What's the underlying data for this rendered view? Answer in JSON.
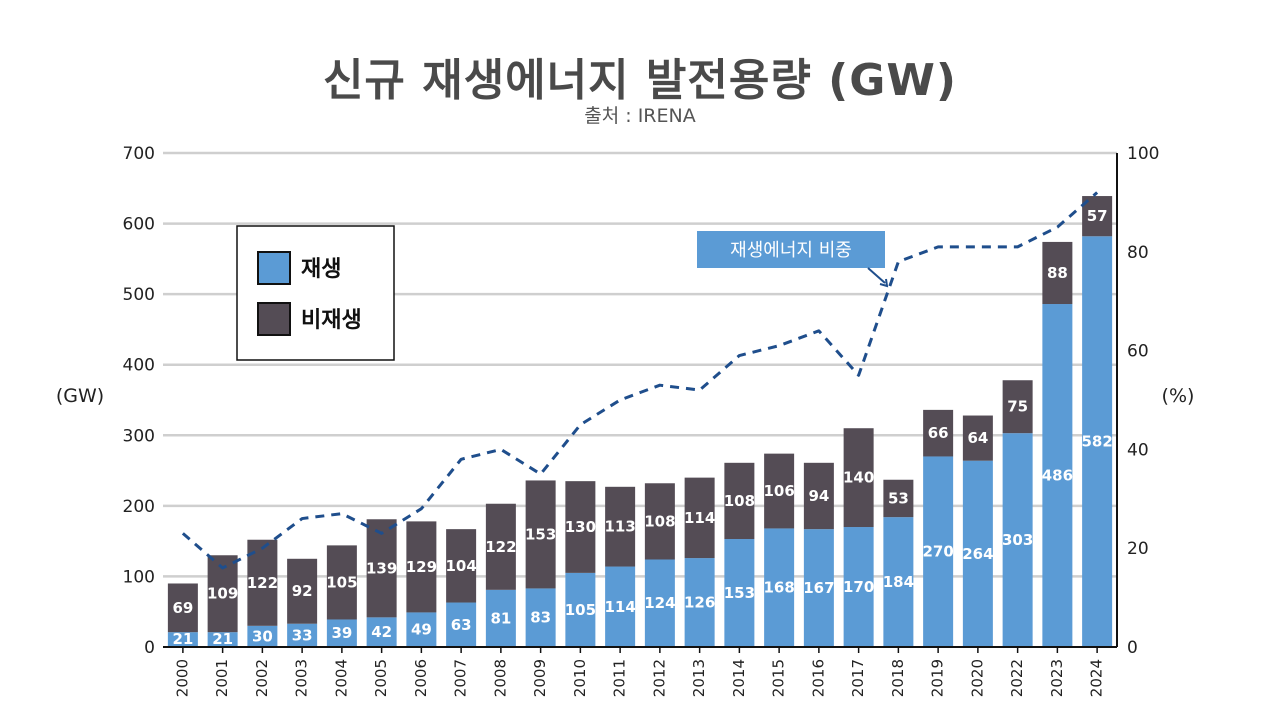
{
  "title": "신규 재생에너지 발전용량 (GW)",
  "subtitle": "출처 : IRENA",
  "colors": {
    "renewable": "#5b9bd5",
    "non_renewable": "#544c55",
    "share_line": "#1f4e8c",
    "callout": "#5b9bd5",
    "grid": "#cfcfcf"
  },
  "chart_data": {
    "type": "bar",
    "stacked": true,
    "title": "신규 재생에너지 발전용량 (GW)",
    "source": "출처 : IRENA",
    "ylabel_left": "(GW)",
    "ylabel_right": "(%)",
    "ylim": [
      0,
      700
    ],
    "yticks": [
      0,
      100,
      200,
      300,
      400,
      500,
      600,
      700
    ],
    "y2lim": [
      0,
      100
    ],
    "y2ticks": [
      0,
      20,
      40,
      60,
      80,
      100
    ],
    "grid": true,
    "legend_position": "top-left",
    "categories": [
      "2000",
      "2001",
      "2002",
      "2003",
      "2004",
      "2005",
      "2006",
      "2007",
      "2008",
      "2009",
      "2010",
      "2011",
      "2012",
      "2013",
      "2014",
      "2015",
      "2016",
      "2017",
      "2018",
      "2019",
      "2020",
      "2022",
      "2023",
      "2024"
    ],
    "series": [
      {
        "name": "재생",
        "values": [
          21,
          21,
          30,
          33,
          39,
          42,
          49,
          63,
          81,
          83,
          105,
          114,
          124,
          126,
          153,
          168,
          167,
          170,
          184,
          270,
          264,
          303,
          486,
          582
        ]
      },
      {
        "name": "비재생",
        "values": [
          69,
          109,
          122,
          92,
          105,
          139,
          129,
          104,
          122,
          153,
          130,
          113,
          108,
          114,
          108,
          106,
          94,
          140,
          53,
          66,
          64,
          75,
          88,
          57
        ]
      }
    ],
    "share_line": {
      "name": "재생에너지 비중",
      "axis": "right",
      "style": "dashed",
      "values": [
        23,
        16,
        20,
        26,
        27,
        23,
        28,
        38,
        40,
        35,
        45,
        50,
        53,
        52,
        59,
        61,
        64,
        55,
        78,
        81,
        81,
        81,
        85,
        92
      ]
    },
    "annotations": [
      {
        "text": "재생에너지 비중"
      }
    ]
  }
}
